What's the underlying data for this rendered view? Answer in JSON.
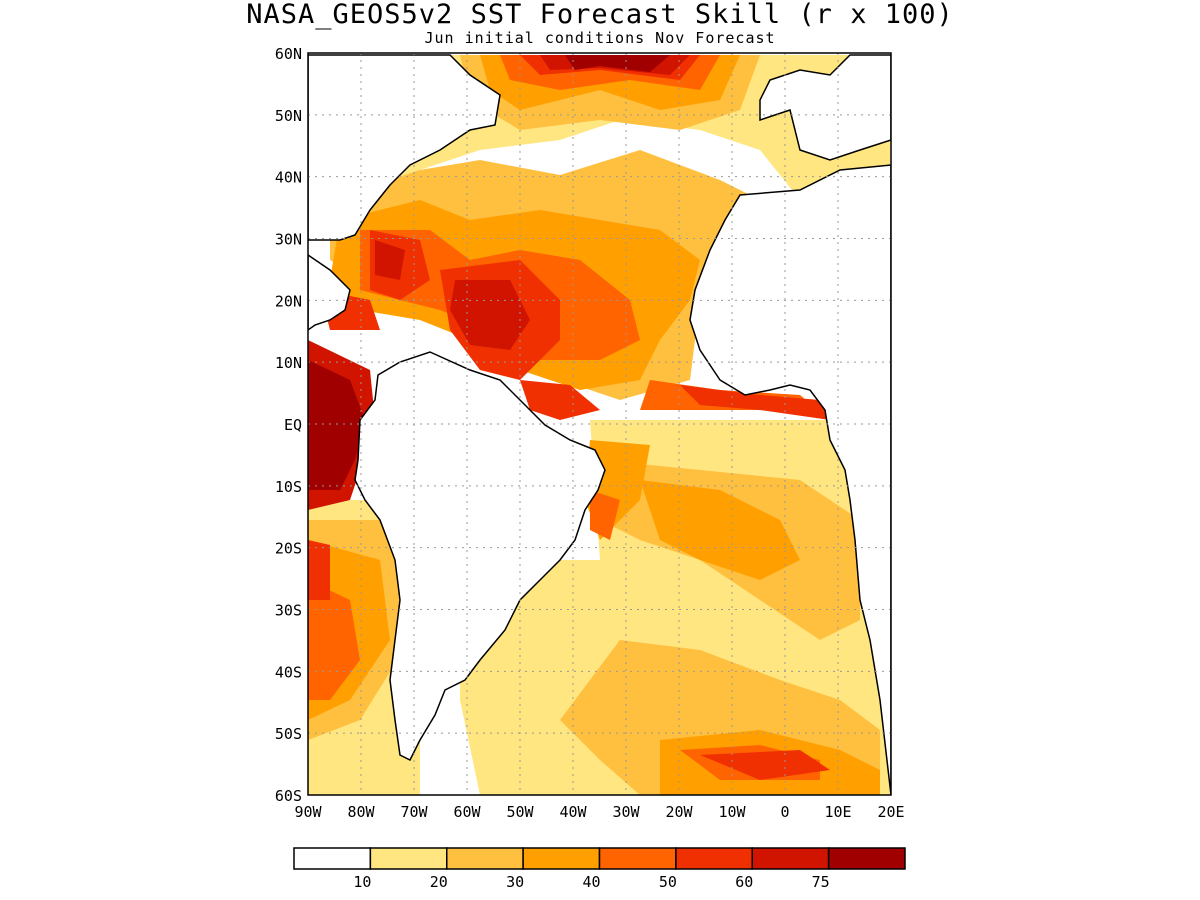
{
  "title": "NASA_GEOS5v2 SST Forecast Skill (r x 100)",
  "subtitle": "Jun initial conditions  Nov Forecast",
  "map": {
    "lon_range": [
      -90,
      20
    ],
    "lat_range": [
      -60,
      60
    ],
    "lat_ticks": [
      "60N",
      "50N",
      "40N",
      "30N",
      "20N",
      "10N",
      "EQ",
      "10S",
      "20S",
      "30S",
      "40S",
      "50S",
      "60S"
    ],
    "lon_ticks": [
      "90W",
      "80W",
      "70W",
      "60W",
      "50W",
      "40W",
      "30W",
      "20W",
      "10W",
      "0",
      "10E",
      "20E"
    ],
    "grid": "dotted"
  },
  "colorbar": {
    "labels": [
      "10",
      "20",
      "30",
      "40",
      "50",
      "60",
      "75"
    ],
    "colors": [
      "#ffffff",
      "#ffe680",
      "#ffbf3f",
      "#ffa000",
      "#ff6400",
      "#f03000",
      "#d01400",
      "#a00000"
    ]
  }
}
